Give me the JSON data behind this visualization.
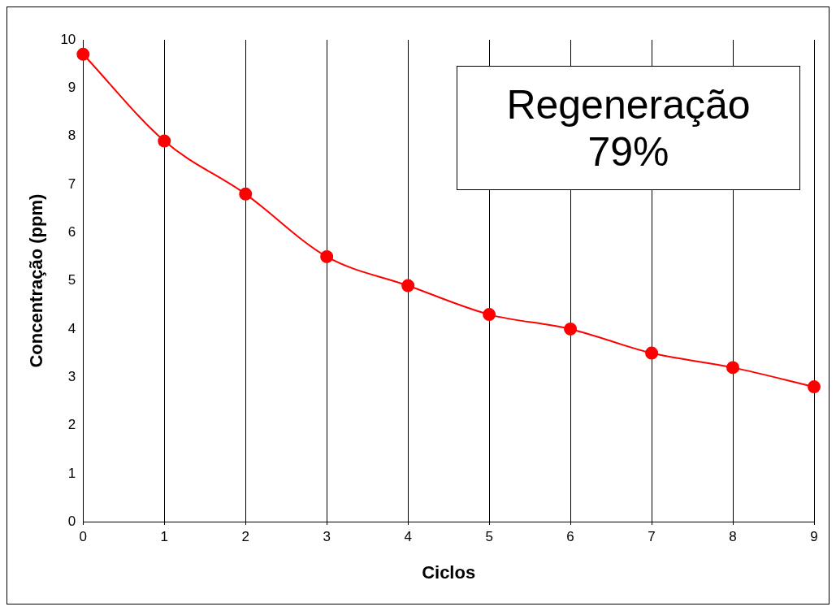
{
  "chart_data": {
    "type": "line",
    "xlabel": "Ciclos",
    "ylabel": "Concentração (ppm)",
    "x": [
      0,
      1,
      2,
      3,
      4,
      5,
      6,
      7,
      8,
      9
    ],
    "series": [
      {
        "color": "#ff0000",
        "values": [
          9.7,
          7.9,
          6.8,
          5.5,
          4.9,
          4.3,
          4.0,
          3.5,
          3.2,
          2.8
        ]
      }
    ],
    "xlim": [
      0,
      9
    ],
    "xticks": [
      0,
      1,
      2,
      3,
      4,
      5,
      6,
      7,
      8,
      9
    ],
    "ylim": [
      0,
      10
    ],
    "yticks": [
      0,
      1,
      2,
      3,
      4,
      5,
      6,
      7,
      8,
      9,
      10
    ],
    "grid": "x",
    "legend": false,
    "marker": "circle",
    "annotations": [
      "Regeneração 79%"
    ]
  }
}
